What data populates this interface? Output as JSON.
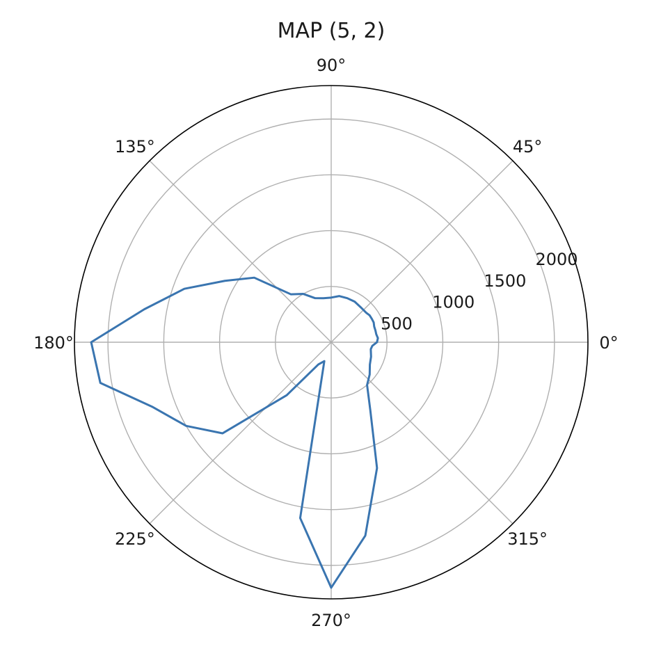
{
  "chart_data": {
    "type": "line",
    "projection": "polar",
    "title": "MAP (5, 2)",
    "angle_ticks": [
      "0°",
      "45°",
      "90°",
      "135°",
      "180°",
      "225°",
      "270°",
      "315°"
    ],
    "radial_ticks": [
      500,
      1000,
      1500,
      2000
    ],
    "radial_tick_labels": [
      "500",
      "1000",
      "1500",
      "2000"
    ],
    "rlim": [
      0,
      2300
    ],
    "radial_label_angle_deg": 22.5,
    "grid": true,
    "series_color": "#3a75b0",
    "series": [
      {
        "theta_deg": [
          0,
          5,
          10,
          15,
          20,
          25,
          30,
          35,
          40,
          50,
          60,
          70,
          80,
          90,
          100,
          110,
          120,
          130,
          140,
          150,
          160,
          170,
          180,
          190,
          200,
          210,
          220,
          230,
          240,
          250,
          260,
          270,
          280,
          290,
          300,
          310,
          320,
          330,
          340,
          350,
          355,
          360
        ],
        "r": [
          410,
          420,
          410,
          410,
          410,
          420,
          420,
          420,
          410,
          410,
          420,
          420,
          420,
          400,
          400,
          420,
          500,
          560,
          900,
          1100,
          1400,
          1700,
          2150,
          2100,
          1700,
          1500,
          1270,
          620,
          230,
          180,
          1600,
          2200,
          1760,
          1200,
          700,
          500,
          450,
          400,
          380,
          360,
          370,
          410
        ]
      }
    ]
  }
}
